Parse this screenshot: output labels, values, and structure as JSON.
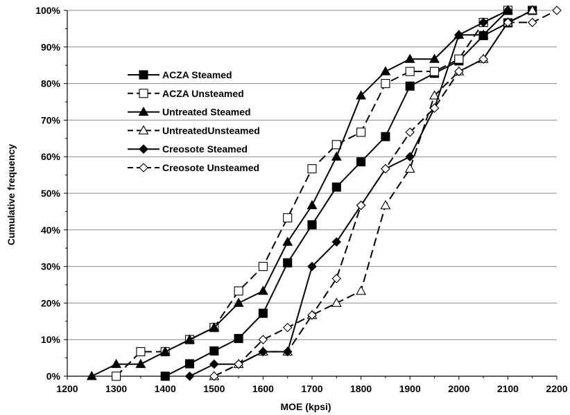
{
  "chart_data": {
    "type": "line",
    "title": "",
    "xlabel": "MOE (kpsi)",
    "ylabel": "Cumulative frequency",
    "xlim": [
      1200,
      2200
    ],
    "ylim": [
      0,
      100
    ],
    "x_ticks": [
      1200,
      1300,
      1400,
      1500,
      1600,
      1700,
      1800,
      1900,
      2000,
      2100,
      2200
    ],
    "y_ticks": [
      0,
      10,
      20,
      30,
      40,
      50,
      60,
      70,
      80,
      90,
      100
    ],
    "y_tick_labels": [
      "0%",
      "10%",
      "20%",
      "30%",
      "40%",
      "50%",
      "60%",
      "70%",
      "80%",
      "90%",
      "100%"
    ],
    "grid": "horizontal",
    "legend_position": "upper-left",
    "series": [
      {
        "name": "ACZA Steamed",
        "legend_label": "ACZA Steamed",
        "marker": "square-filled",
        "line": "solid",
        "points": [
          [
            1400,
            0
          ],
          [
            1450,
            3.4
          ],
          [
            1500,
            6.9
          ],
          [
            1550,
            10.3
          ],
          [
            1600,
            17.2
          ],
          [
            1650,
            31.0
          ],
          [
            1700,
            41.4
          ],
          [
            1750,
            51.7
          ],
          [
            1800,
            58.6
          ],
          [
            1850,
            65.5
          ],
          [
            1900,
            79.3
          ],
          [
            1950,
            82.8
          ],
          [
            2000,
            86.2
          ],
          [
            2050,
            93.1
          ],
          [
            2100,
            96.6
          ],
          [
            2150,
            100
          ]
        ]
      },
      {
        "name": "ACZA Unsteamed",
        "legend_label": "ACZA Unsteamed",
        "marker": "square-open",
        "line": "dashed",
        "points": [
          [
            1300,
            0
          ],
          [
            1350,
            6.7
          ],
          [
            1400,
            6.7
          ],
          [
            1450,
            10.0
          ],
          [
            1500,
            13.3
          ],
          [
            1550,
            23.3
          ],
          [
            1600,
            30.0
          ],
          [
            1650,
            43.3
          ],
          [
            1700,
            56.7
          ],
          [
            1750,
            63.3
          ],
          [
            1800,
            66.7
          ],
          [
            1850,
            80.0
          ],
          [
            1900,
            83.3
          ],
          [
            1950,
            83.3
          ],
          [
            2000,
            86.7
          ],
          [
            2050,
            96.7
          ],
          [
            2100,
            100
          ]
        ]
      },
      {
        "name": "Untreated Steamed",
        "legend_label": "Untreated Steamed",
        "marker": "triangle-filled",
        "line": "solid",
        "points": [
          [
            1250,
            0
          ],
          [
            1300,
            3.3
          ],
          [
            1350,
            3.3
          ],
          [
            1400,
            6.7
          ],
          [
            1450,
            10.0
          ],
          [
            1500,
            13.3
          ],
          [
            1550,
            20.0
          ],
          [
            1600,
            23.3
          ],
          [
            1650,
            36.7
          ],
          [
            1700,
            46.7
          ],
          [
            1750,
            60.0
          ],
          [
            1800,
            76.7
          ],
          [
            1850,
            83.3
          ],
          [
            1900,
            86.7
          ],
          [
            1950,
            86.7
          ],
          [
            2000,
            93.3
          ],
          [
            2050,
            93.3
          ],
          [
            2100,
            100
          ]
        ]
      },
      {
        "name": "UntreatedUnsteamed",
        "legend_label": "UntreatedUnsteamed",
        "marker": "triangle-open",
        "line": "dashed",
        "points": [
          [
            1500,
            0
          ],
          [
            1550,
            3.3
          ],
          [
            1600,
            6.7
          ],
          [
            1650,
            6.7
          ],
          [
            1700,
            16.7
          ],
          [
            1750,
            20.0
          ],
          [
            1800,
            23.3
          ],
          [
            1850,
            46.7
          ],
          [
            1900,
            56.7
          ],
          [
            1950,
            76.7
          ],
          [
            2000,
            83.3
          ],
          [
            2050,
            86.7
          ],
          [
            2100,
            96.7
          ],
          [
            2150,
            100
          ]
        ]
      },
      {
        "name": "Creosote Steamed",
        "legend_label": "Creosote Steamed",
        "marker": "diamond-filled",
        "line": "solid",
        "points": [
          [
            1450,
            0
          ],
          [
            1500,
            3.3
          ],
          [
            1550,
            3.3
          ],
          [
            1600,
            6.7
          ],
          [
            1650,
            6.7
          ],
          [
            1700,
            30.0
          ],
          [
            1750,
            36.7
          ],
          [
            1800,
            46.7
          ],
          [
            1850,
            56.7
          ],
          [
            1900,
            60.0
          ],
          [
            1950,
            73.3
          ],
          [
            2000,
            93.3
          ],
          [
            2050,
            96.7
          ],
          [
            2100,
            100
          ]
        ]
      },
      {
        "name": "Creosote Unsteamed",
        "legend_label": "Creosote Unsteamed",
        "marker": "diamond-open",
        "line": "dashed",
        "points": [
          [
            1500,
            0
          ],
          [
            1550,
            3.3
          ],
          [
            1600,
            10.0
          ],
          [
            1650,
            13.3
          ],
          [
            1700,
            16.7
          ],
          [
            1750,
            26.7
          ],
          [
            1800,
            46.7
          ],
          [
            1850,
            56.7
          ],
          [
            1900,
            66.7
          ],
          [
            1950,
            73.3
          ],
          [
            2000,
            83.3
          ],
          [
            2050,
            86.7
          ],
          [
            2100,
            96.7
          ],
          [
            2150,
            96.7
          ],
          [
            2200,
            100
          ]
        ]
      }
    ]
  }
}
